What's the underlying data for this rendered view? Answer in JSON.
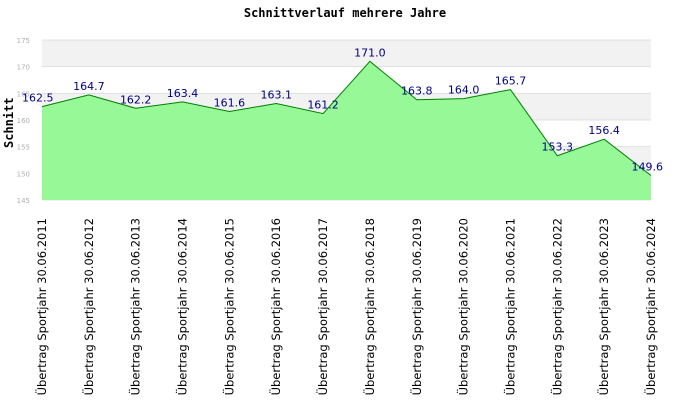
{
  "chart_data": {
    "type": "area",
    "title": "Schnittverlauf mehrere Jahre",
    "xlabel": "",
    "ylabel": "Schnitt",
    "ylim": [
      145,
      175
    ],
    "yticks": [
      145,
      150,
      155,
      160,
      165,
      170,
      175
    ],
    "grid": true,
    "colors": {
      "fill": "#90f890",
      "line": "#008000",
      "label": "#000080",
      "band": "#f2f2f2",
      "axis_text": "#b0b0b0"
    },
    "categories": [
      "Übertrag Sportjahr 30.06.2011",
      "Übertrag Sportjahr 30.06.2012",
      "Übertrag Sportjahr 30.06.2013",
      "Übertrag Sportjahr 30.06.2014",
      "Übertrag Sportjahr 30.06.2015",
      "Übertrag Sportjahr 30.06.2016",
      "Übertrag Sportjahr 30.06.2017",
      "Übertrag Sportjahr 30.06.2018",
      "Übertrag Sportjahr 30.06.2019",
      "Übertrag Sportjahr 30.06.2020",
      "Übertrag Sportjahr 30.06.2021",
      "Übertrag Sportjahr 30.06.2022",
      "Übertrag Sportjahr 30.06.2023",
      "Übertrag Sportjahr 30.06.2024"
    ],
    "values": [
      162.5,
      164.7,
      162.2,
      163.4,
      161.6,
      163.1,
      161.2,
      171.0,
      163.8,
      164.0,
      165.7,
      153.3,
      156.4,
      149.6
    ],
    "value_labels": [
      "162.5",
      "164.7",
      "162.2",
      "163.4",
      "161.6",
      "163.1",
      "161.2",
      "171.0",
      "163.8",
      "164.0",
      "165.7",
      "153.3",
      "156.4",
      "149.6"
    ]
  }
}
